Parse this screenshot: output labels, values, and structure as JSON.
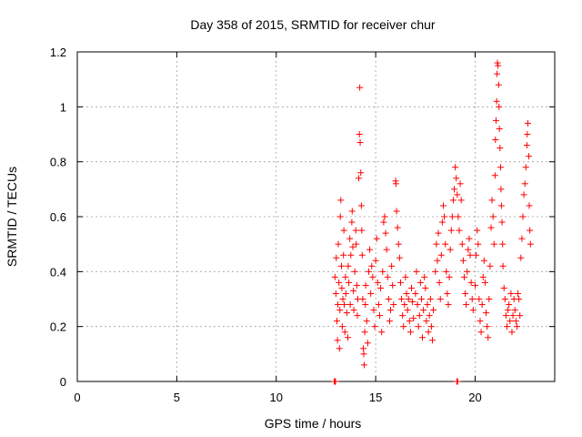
{
  "chart_data": {
    "type": "scatter",
    "title": "Day 358 of 2015, SRMTID for receiver chur",
    "xlabel": "GPS time / hours",
    "ylabel": "SRMTID / TECUs",
    "xlim": [
      0,
      24
    ],
    "ylim": [
      0,
      1.2
    ],
    "xticks": [
      0,
      5,
      10,
      15,
      20
    ],
    "yticks": [
      0,
      0.2,
      0.4,
      0.6,
      0.8,
      1,
      1.2
    ],
    "xtick_labels": [
      "0",
      "5",
      "10",
      "15",
      "20"
    ],
    "ytick_labels": [
      "0",
      "0.2",
      "0.4",
      "0.6",
      "0.8",
      "1",
      "1.2"
    ],
    "grid": true,
    "marker": "+",
    "color": "#ff0000",
    "series": [
      {
        "name": "SRMTID",
        "points": [
          [
            12.92,
            0.0
          ],
          [
            12.95,
            0.0
          ],
          [
            12.98,
            0.0
          ],
          [
            19.08,
            0.0
          ],
          [
            19.12,
            0.0
          ],
          [
            12.95,
            0.38
          ],
          [
            13.0,
            0.32
          ],
          [
            13.02,
            0.45
          ],
          [
            13.05,
            0.22
          ],
          [
            13.08,
            0.15
          ],
          [
            13.1,
            0.28
          ],
          [
            13.12,
            0.5
          ],
          [
            13.15,
            0.36
          ],
          [
            13.18,
            0.12
          ],
          [
            13.2,
            0.26
          ],
          [
            13.22,
            0.6
          ],
          [
            13.25,
            0.66
          ],
          [
            13.28,
            0.42
          ],
          [
            13.3,
            0.34
          ],
          [
            13.32,
            0.2
          ],
          [
            13.35,
            0.3
          ],
          [
            13.38,
            0.46
          ],
          [
            13.4,
            0.55
          ],
          [
            13.42,
            0.28
          ],
          [
            13.45,
            0.18
          ],
          [
            13.48,
            0.38
          ],
          [
            13.5,
            0.32
          ],
          [
            13.55,
            0.25
          ],
          [
            13.6,
            0.16
          ],
          [
            13.62,
            0.42
          ],
          [
            13.65,
            0.36
          ],
          [
            13.7,
            0.52
          ],
          [
            13.72,
            0.28
          ],
          [
            13.75,
            0.46
          ],
          [
            13.8,
            0.58
          ],
          [
            13.82,
            0.62
          ],
          [
            13.85,
            0.49
          ],
          [
            13.88,
            0.33
          ],
          [
            13.9,
            0.26
          ],
          [
            13.95,
            0.4
          ],
          [
            14.0,
            0.55
          ],
          [
            14.02,
            0.5
          ],
          [
            14.05,
            0.35
          ],
          [
            14.08,
            0.24
          ],
          [
            14.1,
            0.3
          ],
          [
            14.15,
            0.74
          ],
          [
            14.18,
            0.9
          ],
          [
            14.2,
            1.07
          ],
          [
            14.22,
            0.87
          ],
          [
            14.25,
            0.76
          ],
          [
            14.28,
            0.64
          ],
          [
            14.3,
            0.55
          ],
          [
            14.32,
            0.46
          ],
          [
            14.35,
            0.3
          ],
          [
            14.38,
            0.12
          ],
          [
            14.4,
            0.1
          ],
          [
            14.42,
            0.06
          ],
          [
            14.45,
            0.18
          ],
          [
            14.48,
            0.28
          ],
          [
            14.5,
            0.35
          ],
          [
            14.55,
            0.22
          ],
          [
            14.6,
            0.14
          ],
          [
            14.65,
            0.4
          ],
          [
            14.7,
            0.48
          ],
          [
            14.75,
            0.32
          ],
          [
            14.8,
            0.42
          ],
          [
            14.85,
            0.38
          ],
          [
            14.9,
            0.26
          ],
          [
            14.95,
            0.2
          ],
          [
            15.0,
            0.44
          ],
          [
            15.05,
            0.52
          ],
          [
            15.1,
            0.36
          ],
          [
            15.15,
            0.28
          ],
          [
            15.2,
            0.24
          ],
          [
            15.25,
            0.34
          ],
          [
            15.3,
            0.18
          ],
          [
            15.35,
            0.4
          ],
          [
            15.4,
            0.58
          ],
          [
            15.45,
            0.6
          ],
          [
            15.5,
            0.54
          ],
          [
            15.55,
            0.48
          ],
          [
            15.6,
            0.38
          ],
          [
            15.65,
            0.3
          ],
          [
            15.7,
            0.22
          ],
          [
            15.75,
            0.26
          ],
          [
            15.8,
            0.42
          ],
          [
            15.85,
            0.35
          ],
          [
            15.9,
            0.28
          ],
          [
            16.0,
            0.73
          ],
          [
            16.02,
            0.72
          ],
          [
            16.05,
            0.62
          ],
          [
            16.1,
            0.56
          ],
          [
            16.15,
            0.5
          ],
          [
            16.2,
            0.45
          ],
          [
            16.25,
            0.36
          ],
          [
            16.3,
            0.3
          ],
          [
            16.35,
            0.24
          ],
          [
            16.4,
            0.2
          ],
          [
            16.45,
            0.28
          ],
          [
            16.5,
            0.38
          ],
          [
            16.55,
            0.32
          ],
          [
            16.6,
            0.26
          ],
          [
            16.65,
            0.3
          ],
          [
            16.7,
            0.22
          ],
          [
            16.75,
            0.18
          ],
          [
            16.8,
            0.34
          ],
          [
            16.85,
            0.29
          ],
          [
            16.9,
            0.23
          ],
          [
            17.0,
            0.32
          ],
          [
            17.05,
            0.4
          ],
          [
            17.1,
            0.28
          ],
          [
            17.15,
            0.2
          ],
          [
            17.2,
            0.24
          ],
          [
            17.25,
            0.36
          ],
          [
            17.3,
            0.3
          ],
          [
            17.35,
            0.16
          ],
          [
            17.4,
            0.26
          ],
          [
            17.45,
            0.38
          ],
          [
            17.5,
            0.34
          ],
          [
            17.55,
            0.22
          ],
          [
            17.6,
            0.28
          ],
          [
            17.65,
            0.18
          ],
          [
            17.7,
            0.24
          ],
          [
            17.75,
            0.3
          ],
          [
            17.8,
            0.2
          ],
          [
            17.85,
            0.15
          ],
          [
            17.9,
            0.26
          ],
          [
            18.0,
            0.4
          ],
          [
            18.05,
            0.5
          ],
          [
            18.1,
            0.44
          ],
          [
            18.15,
            0.54
          ],
          [
            18.2,
            0.36
          ],
          [
            18.25,
            0.3
          ],
          [
            18.3,
            0.46
          ],
          [
            18.35,
            0.58
          ],
          [
            18.4,
            0.64
          ],
          [
            18.45,
            0.6
          ],
          [
            18.5,
            0.5
          ],
          [
            18.55,
            0.4
          ],
          [
            18.6,
            0.32
          ],
          [
            18.65,
            0.28
          ],
          [
            18.7,
            0.38
          ],
          [
            18.75,
            0.48
          ],
          [
            18.8,
            0.55
          ],
          [
            18.85,
            0.6
          ],
          [
            18.9,
            0.66
          ],
          [
            18.95,
            0.7
          ],
          [
            19.0,
            0.78
          ],
          [
            19.05,
            0.74
          ],
          [
            19.1,
            0.68
          ],
          [
            19.15,
            0.6
          ],
          [
            19.2,
            0.55
          ],
          [
            19.25,
            0.72
          ],
          [
            19.3,
            0.66
          ],
          [
            19.35,
            0.5
          ],
          [
            19.4,
            0.44
          ],
          [
            19.45,
            0.38
          ],
          [
            19.5,
            0.32
          ],
          [
            19.55,
            0.28
          ],
          [
            19.6,
            0.4
          ],
          [
            19.65,
            0.48
          ],
          [
            19.7,
            0.52
          ],
          [
            19.75,
            0.46
          ],
          [
            19.8,
            0.36
          ],
          [
            19.85,
            0.3
          ],
          [
            19.9,
            0.26
          ],
          [
            20.0,
            0.35
          ],
          [
            20.05,
            0.46
          ],
          [
            20.1,
            0.55
          ],
          [
            20.15,
            0.5
          ],
          [
            20.2,
            0.3
          ],
          [
            20.25,
            0.22
          ],
          [
            20.3,
            0.18
          ],
          [
            20.35,
            0.28
          ],
          [
            20.4,
            0.38
          ],
          [
            20.45,
            0.44
          ],
          [
            20.5,
            0.36
          ],
          [
            20.55,
            0.25
          ],
          [
            20.6,
            0.2
          ],
          [
            20.65,
            0.16
          ],
          [
            20.7,
            0.3
          ],
          [
            20.75,
            0.42
          ],
          [
            20.8,
            0.56
          ],
          [
            20.85,
            0.66
          ],
          [
            20.9,
            0.6
          ],
          [
            20.95,
            0.5
          ],
          [
            21.0,
            0.75
          ],
          [
            21.02,
            0.88
          ],
          [
            21.05,
            0.95
          ],
          [
            21.08,
            1.02
          ],
          [
            21.1,
            1.12
          ],
          [
            21.12,
            1.16
          ],
          [
            21.15,
            1.15
          ],
          [
            21.18,
            1.08
          ],
          [
            21.2,
            1.0
          ],
          [
            21.22,
            0.92
          ],
          [
            21.25,
            0.85
          ],
          [
            21.28,
            0.78
          ],
          [
            21.3,
            0.7
          ],
          [
            21.32,
            0.64
          ],
          [
            21.35,
            0.58
          ],
          [
            21.38,
            0.5
          ],
          [
            21.4,
            0.42
          ],
          [
            21.45,
            0.34
          ],
          [
            21.5,
            0.3
          ],
          [
            21.55,
            0.24
          ],
          [
            21.6,
            0.2
          ],
          [
            21.65,
            0.26
          ],
          [
            21.7,
            0.28
          ],
          [
            21.75,
            0.22
          ],
          [
            21.8,
            0.32
          ],
          [
            21.85,
            0.18
          ],
          [
            21.9,
            0.24
          ],
          [
            21.95,
            0.3
          ],
          [
            22.0,
            0.26
          ],
          [
            22.05,
            0.22
          ],
          [
            22.1,
            0.2
          ],
          [
            22.15,
            0.32
          ],
          [
            22.2,
            0.3
          ],
          [
            22.25,
            0.24
          ],
          [
            22.3,
            0.45
          ],
          [
            22.35,
            0.52
          ],
          [
            22.4,
            0.6
          ],
          [
            22.45,
            0.68
          ],
          [
            22.5,
            0.72
          ],
          [
            22.55,
            0.78
          ],
          [
            22.6,
            0.86
          ],
          [
            22.62,
            0.9
          ],
          [
            22.65,
            0.94
          ],
          [
            22.7,
            0.82
          ],
          [
            22.72,
            0.64
          ],
          [
            22.75,
            0.55
          ],
          [
            22.78,
            0.5
          ]
        ]
      }
    ]
  }
}
